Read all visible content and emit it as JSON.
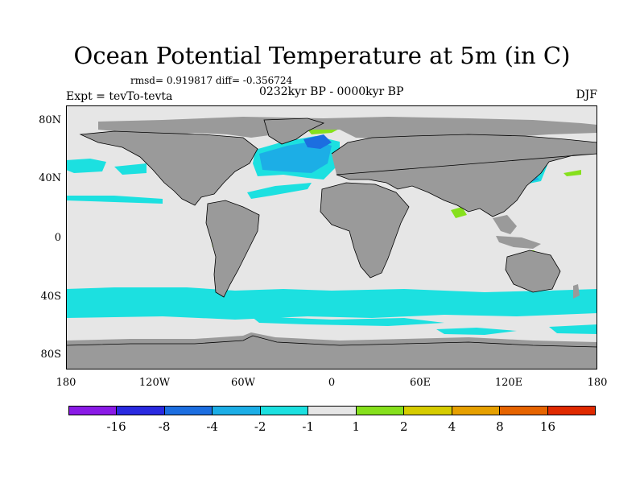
{
  "header": {
    "title": "Ocean Potential Temperature at 5m (in C)",
    "stats": "rmsd= 0.919817 diff= -0.356724",
    "experiment": "Expt = tevTo-tevta",
    "period": "0232kyr BP - 0000kyr BP",
    "season": "DJF"
  },
  "map": {
    "lat_labels": [
      "80N",
      "40N",
      "0",
      "40S",
      "80S"
    ],
    "lon_labels": [
      "180",
      "120W",
      "60W",
      "0",
      "60E",
      "120E",
      "180"
    ],
    "colors": {
      "land": "#9a9a9a",
      "neutral": "#e6e6e6",
      "coast": "#000000"
    }
  },
  "colorbar": {
    "labels": [
      "-16",
      "-8",
      "-4",
      "-2",
      "-1",
      "1",
      "2",
      "4",
      "8",
      "16"
    ],
    "colors": [
      "#8a1ae6",
      "#2a2ae0",
      "#1c6ee0",
      "#1caee6",
      "#1ce0e0",
      "#e6e6e6",
      "#86e01c",
      "#d6cc00",
      "#e6a000",
      "#e66400",
      "#e02a00"
    ]
  },
  "chart_data": {
    "type": "heatmap",
    "title": "Ocean Potential Temperature at 5m (in C)",
    "subtitle": "rmsd= 0.919817 diff= -0.356724",
    "left_label": "Expt = tevTo-tevta",
    "center_label": "0232kyr BP - 0000kyr BP",
    "right_label": "DJF",
    "x_ticks": [
      "180",
      "120W",
      "60W",
      "0",
      "60E",
      "120E",
      "180"
    ],
    "y_ticks": [
      "80N",
      "40N",
      "0",
      "40S",
      "80S"
    ],
    "color_levels": [
      -16,
      -8,
      -4,
      -2,
      -1,
      1,
      2,
      4,
      8,
      16
    ]
  }
}
